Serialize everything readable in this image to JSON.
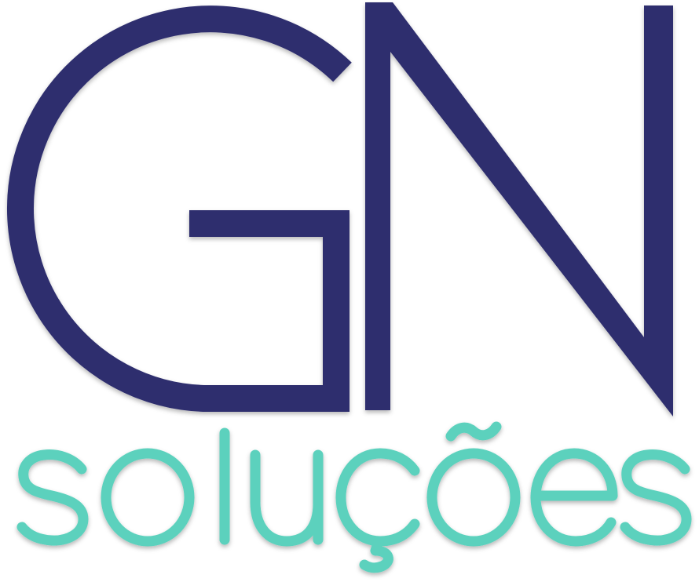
{
  "logo": {
    "monogram": "GN",
    "wordmark": "soluções"
  },
  "colors": {
    "primary": "#2d2d6e",
    "accent": "#5bd1bd",
    "background": "#ffffff"
  }
}
